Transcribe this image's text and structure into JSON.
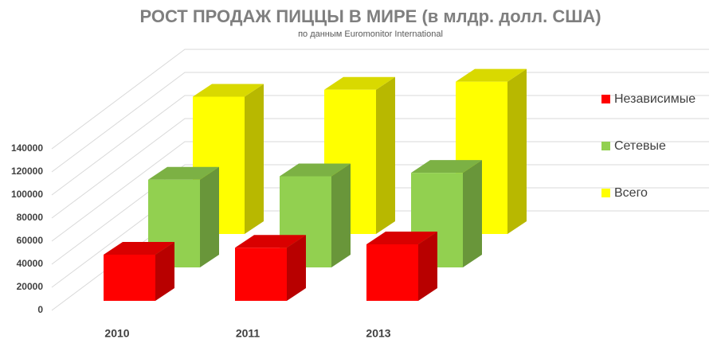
{
  "chart_data": {
    "type": "bar",
    "title": "РОСТ ПРОДАЖ ПИЦЦЫ В МИРЕ (в млдр. долл. США)",
    "subtitle": "по данным Euromonitor International",
    "categories": [
      "2010",
      "2011",
      "2013"
    ],
    "series": [
      {
        "name": "Независимые",
        "color": "#ff0000",
        "values": [
          40000,
          46000,
          49000
        ]
      },
      {
        "name": "Сетевые",
        "color": "#92d050",
        "values": [
          76000,
          79000,
          82000
        ]
      },
      {
        "name": "Всего",
        "color": "#ffff00",
        "values": [
          119000,
          125000,
          132000
        ]
      }
    ],
    "ylim": [
      0,
      140000
    ],
    "yticks": [
      0,
      20000,
      40000,
      60000,
      80000,
      100000,
      120000,
      140000
    ],
    "grid": true,
    "legend": "right"
  }
}
